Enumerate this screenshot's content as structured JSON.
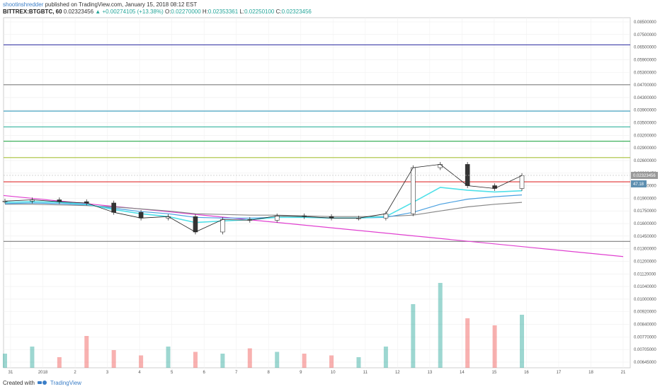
{
  "header": {
    "user": "shootinshredder",
    "published": "published on TradingView.com, January 15, 2018 08:12 EST",
    "symbol": "BITTREX:BTGBTC, 60",
    "last_value": "0.02323456",
    "change": "▲ +0.00274105 (+13.38%)",
    "ohlc": {
      "o_label": "O:",
      "o_value": "0.02270000",
      "h_label": "H:",
      "h_value": "0.02353361",
      "l_label": "L:",
      "l_value": "0.02250100",
      "c_label": "C:",
      "c_value": "0.02323456"
    }
  },
  "footer": {
    "created_with": "Created with",
    "brand": "TradingView"
  },
  "colors": {
    "up": "#26a69a",
    "down": "#ef5350",
    "blue_line": "#3f3fa8",
    "grey_line": "#7f7f7f",
    "cyan_line": "#3399bb",
    "teal_line": "#38b5a0",
    "green_line": "#2aa84a",
    "olive_line": "#a8c23a",
    "red_line": "#e03030",
    "magenta_line": "#e040d0",
    "ma_cyan": "#4fe0e8",
    "ma_blue": "#4aa0e0",
    "ma_grey": "#888888",
    "ma_dark": "#555555",
    "bb": "#3aa88a",
    "price_badge": "#999999",
    "rsi_badge": "#5e8fb0"
  },
  "chart_data": {
    "type": "line",
    "symbol": "BITTREX:BTGBTC",
    "interval": "60",
    "x_axis": {
      "labels": [
        "31",
        "2018",
        "2",
        "3",
        "4",
        "5",
        "6",
        "7",
        "8",
        "9",
        "10",
        "11",
        "12",
        "13",
        "14",
        "15",
        "16",
        "17",
        "18",
        "21"
      ]
    },
    "y_axis": {
      "position": "right",
      "ticks": [
        "0.08500000",
        "0.07500000",
        "0.06500000",
        "0.05900000",
        "0.05300000",
        "0.04700000",
        "0.04300000",
        "0.03900000",
        "0.03500000",
        "0.03200000",
        "0.02900000",
        "0.02600000",
        "0.02323456",
        "0.02100000",
        "0.01900000",
        "0.01750000",
        "0.01600000",
        "0.01450000",
        "0.01300000",
        "0.01200000",
        "0.01120000",
        "0.01040000",
        "0.01000000",
        "0.00920000",
        "0.00840000",
        "0.00770000",
        "0.00705000",
        "0.00645000"
      ]
    },
    "horizontal_levels": [
      {
        "value": 0.07,
        "color": "#3f3fa8"
      },
      {
        "value": 0.05,
        "color": "#7f7f7f"
      },
      {
        "value": 0.04,
        "color": "#3399bb"
      },
      {
        "value": 0.035,
        "color": "#38b5a0"
      },
      {
        "value": 0.031,
        "color": "#2aa84a"
      },
      {
        "value": 0.027,
        "color": "#a8c23a"
      },
      {
        "value": 0.022,
        "color": "#e03030"
      },
      {
        "value": 0.0133,
        "color": "#7f7f7f"
      }
    ],
    "trendline": {
      "color": "#e040d0",
      "from": {
        "x": "30",
        "y": 0.0196
      },
      "to": {
        "x": "20",
        "y": 0.0117
      }
    },
    "price": {
      "series_name": "BTGBTC",
      "x": [
        "30",
        "31",
        "1",
        "2",
        "3",
        "4",
        "5",
        "6",
        "7",
        "8",
        "9",
        "10",
        "11",
        "12",
        "13",
        "13.5",
        "14",
        "14.5",
        "15",
        "15.3"
      ],
      "close": [
        0.0187,
        0.0189,
        0.0186,
        0.0184,
        0.017,
        0.0162,
        0.0164,
        0.0144,
        0.016,
        0.0159,
        0.0165,
        0.0164,
        0.0162,
        0.0162,
        0.0168,
        0.0248,
        0.0255,
        0.0213,
        0.0208,
        0.0232
      ]
    },
    "ma_fast": [
      0.0185,
      0.0186,
      0.0185,
      0.0182,
      0.0174,
      0.0168,
      0.0164,
      0.0156,
      0.0158,
      0.016,
      0.0163,
      0.0163,
      0.0162,
      0.0162,
      0.0164,
      0.0185,
      0.021,
      0.0205,
      0.0202,
      0.0204
    ],
    "ma_slow": [
      0.0183,
      0.0184,
      0.0183,
      0.0181,
      0.0176,
      0.0171,
      0.0168,
      0.0163,
      0.0162,
      0.0162,
      0.0163,
      0.0163,
      0.0162,
      0.0162,
      0.0163,
      0.017,
      0.0182,
      0.019,
      0.0194,
      0.0197
    ],
    "ma_long": [
      0.0182,
      0.0182,
      0.0181,
      0.018,
      0.0178,
      0.0175,
      0.0172,
      0.0168,
      0.0167,
      0.0166,
      0.0166,
      0.0165,
      0.0164,
      0.0164,
      0.0164,
      0.0166,
      0.0172,
      0.0178,
      0.0182,
      0.0185
    ],
    "volume": [
      40,
      60,
      30,
      90,
      50,
      35,
      60,
      45,
      40,
      55,
      45,
      40,
      35,
      30,
      60,
      180,
      240,
      140,
      120,
      150
    ],
    "current_price_label": "0.02323456",
    "indicator_badge": "47.18"
  }
}
